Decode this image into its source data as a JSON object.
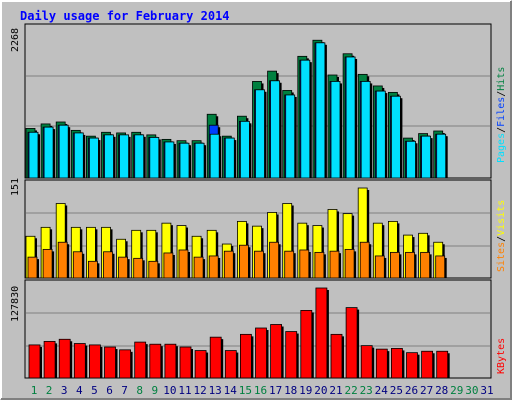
{
  "title": "Daily usage for February 2014",
  "colors": {
    "background": "#c0c0c0",
    "title": "#0000ff",
    "hits": "#008040",
    "files": "#0040ff",
    "pages": "#00e0ff",
    "visits": "#ffff00",
    "sites": "#ff8000",
    "kbytes": "#ff0000",
    "weekday_label": "#000080",
    "weekend_label": "#008040"
  },
  "legend": {
    "hits": "Hits",
    "files": "Files",
    "pages": "Pages",
    "visits": "Visits",
    "sites": "Sites",
    "kbytes": "KBytes",
    "separator": "/"
  },
  "chart_data": {
    "type": "bar",
    "title": "Daily usage for February 2014",
    "days": [
      {
        "label": "1",
        "weekend": true
      },
      {
        "label": "2",
        "weekend": true
      },
      {
        "label": "3",
        "weekend": false
      },
      {
        "label": "4",
        "weekend": false
      },
      {
        "label": "5",
        "weekend": false
      },
      {
        "label": "6",
        "weekend": false
      },
      {
        "label": "7",
        "weekend": false
      },
      {
        "label": "8",
        "weekend": true
      },
      {
        "label": "9",
        "weekend": true
      },
      {
        "label": "10",
        "weekend": false
      },
      {
        "label": "11",
        "weekend": false
      },
      {
        "label": "12",
        "weekend": false
      },
      {
        "label": "13",
        "weekend": false
      },
      {
        "label": "14",
        "weekend": false
      },
      {
        "label": "15",
        "weekend": true
      },
      {
        "label": "16",
        "weekend": true
      },
      {
        "label": "17",
        "weekend": false
      },
      {
        "label": "18",
        "weekend": false
      },
      {
        "label": "19",
        "weekend": false
      },
      {
        "label": "20",
        "weekend": false
      },
      {
        "label": "21",
        "weekend": false
      },
      {
        "label": "22",
        "weekend": true
      },
      {
        "label": "23",
        "weekend": true
      },
      {
        "label": "24",
        "weekend": false
      },
      {
        "label": "25",
        "weekend": false
      },
      {
        "label": "26",
        "weekend": false
      },
      {
        "label": "27",
        "weekend": false
      },
      {
        "label": "28",
        "weekend": false
      },
      {
        "label": "29",
        "weekend": true
      },
      {
        "label": "30",
        "weekend": true
      },
      {
        "label": "31",
        "weekend": false
      }
    ],
    "panels": [
      {
        "name": "hits-files-pages",
        "scale_label": "2268",
        "max": 2268,
        "series": [
          {
            "name": "Hits",
            "color": "#008040",
            "values": [
              770,
              840,
              870,
              740,
              650,
              710,
              700,
              710,
              670,
              600,
              580,
              580,
              990,
              650,
              960,
              1500,
              1660,
              1360,
              1890,
              2140,
              1600,
              1930,
              1610,
              1430,
              1330,
              620,
              690,
              730,
              null,
              null,
              null
            ]
          },
          {
            "name": "Files",
            "color": "#0040ff",
            "values": [
              710,
              790,
              820,
              700,
              620,
              670,
              670,
              670,
              630,
              560,
              540,
              540,
              820,
              620,
              880,
              1370,
              1510,
              1290,
              1830,
              2100,
              1500,
              1880,
              1500,
              1350,
              1270,
              570,
              650,
              680,
              null,
              null,
              null
            ]
          },
          {
            "name": "Pages",
            "color": "#00e0ff",
            "values": [
              710,
              790,
              820,
              700,
              620,
              670,
              670,
              670,
              630,
              560,
              540,
              540,
              680,
              620,
              880,
              1370,
              1510,
              1290,
              1830,
              2100,
              1500,
              1880,
              1500,
              1350,
              1270,
              570,
              650,
              680,
              null,
              null,
              null
            ]
          }
        ]
      },
      {
        "name": "visits-sites",
        "scale_label": "151",
        "max": 151,
        "series": [
          {
            "name": "Visits",
            "color": "#ffff00",
            "values": [
              70,
              85,
              125,
              85,
              85,
              85,
              65,
              80,
              80,
              92,
              88,
              70,
              80,
              57,
              95,
              87,
              110,
              125,
              92,
              88,
              115,
              108,
              151,
              92,
              95,
              72,
              75,
              60,
              null,
              null,
              null
            ]
          },
          {
            "name": "Sites",
            "color": "#ff8000",
            "values": [
              35,
              48,
              60,
              44,
              28,
              44,
              35,
              33,
              28,
              42,
              47,
              35,
              37,
              45,
              55,
              45,
              60,
              45,
              47,
              43,
              45,
              48,
              60,
              37,
              43,
              43,
              43,
              37,
              null,
              null,
              null
            ]
          }
        ]
      },
      {
        "name": "kbytes",
        "scale_label": "127830",
        "max": 127830,
        "series": [
          {
            "name": "KBytes",
            "color": "#ff0000",
            "values": [
              47000,
              52000,
              55000,
              49000,
              47000,
              44000,
              40000,
              51000,
              48000,
              48000,
              44000,
              39000,
              58000,
              39000,
              62000,
              71000,
              76000,
              66000,
              96000,
              127830,
              62000,
              100000,
              46000,
              41000,
              42000,
              36000,
              38000,
              38000,
              null,
              null,
              null
            ]
          }
        ]
      }
    ]
  }
}
